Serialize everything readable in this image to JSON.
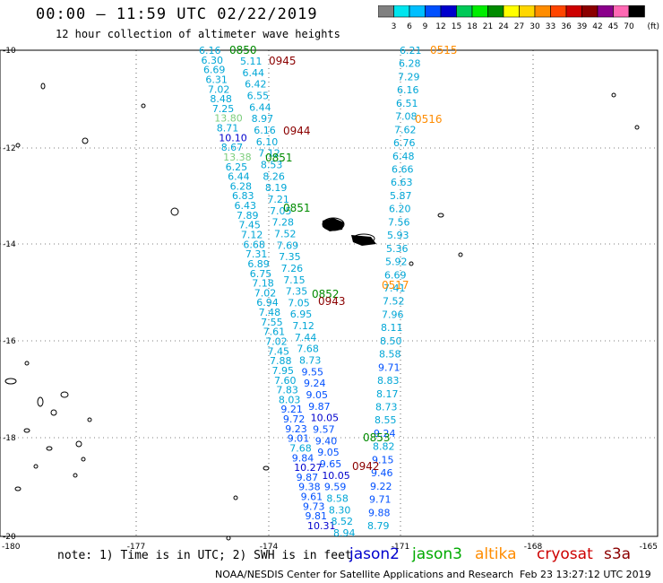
{
  "title": "00:00 – 11:59 UTC 02/22/2019",
  "subtitle": "12 hour collection of altimeter wave heights",
  "colorbar": {
    "labels": [
      "3",
      "6",
      "9",
      "12",
      "15",
      "18",
      "21",
      "24",
      "27",
      "30",
      "33",
      "36",
      "39",
      "42",
      "45",
      "70"
    ],
    "unit": "(ft)",
    "colors": [
      "#808080",
      "#00e5ee",
      "#00bfff",
      "#0050ff",
      "#0000cd",
      "#00c957",
      "#00ee00",
      "#008b00",
      "#ffff00",
      "#ffd700",
      "#ff8c00",
      "#ff4500",
      "#cd0000",
      "#8b0000",
      "#8b008b",
      "#ff69b4",
      "#000000"
    ]
  },
  "axes": {
    "x_ticks": [
      "-180",
      "-177",
      "-174",
      "-171",
      "-168",
      "-165"
    ],
    "y_ticks": [
      "-10",
      "-12",
      "-14",
      "-16",
      "-18",
      "-20"
    ]
  },
  "passes": [
    {
      "time": "0850",
      "color": "#008b00"
    },
    {
      "time": "0945",
      "color": "#8b0000"
    },
    {
      "time": "0944",
      "color": "#8b0000"
    },
    {
      "time": "0851",
      "color": "#008b00"
    },
    {
      "time": "0851",
      "color": "#008b00"
    },
    {
      "time": "0852",
      "color": "#008b00"
    },
    {
      "time": "0943",
      "color": "#8b0000"
    },
    {
      "time": "0853",
      "color": "#008b00"
    },
    {
      "time": "0942",
      "color": "#8b0000"
    },
    {
      "time": "0515",
      "color": "#ff8c00"
    },
    {
      "time": "0516",
      "color": "#ff8c00"
    },
    {
      "time": "0517",
      "color": "#ff8c00"
    }
  ],
  "west_track_values": [
    "6.16",
    "6.30",
    "6.69",
    "6.31",
    "7.02",
    "8.48",
    "7.25",
    "13.80",
    "8.71",
    "10.10",
    "8.67",
    "13.38",
    "6.25",
    "6.44",
    "6.28",
    "6.83",
    "6.43",
    "7.89",
    "7.45",
    "7.12",
    "6.68",
    "7.31",
    "6.89",
    "6.75",
    "7.18",
    "7.02",
    "6.94",
    "7.48",
    "7.55",
    "7.61",
    "7.02",
    "7.45",
    "7.88",
    "7.95",
    "7.60",
    "7.83",
    "8.03",
    "9.21",
    "9.72",
    "9.23",
    "9.01",
    "7.68",
    "9.84",
    "10.27",
    "9.87",
    "9.38",
    "9.61",
    "9.73",
    "9.81",
    "10.31"
  ],
  "mid_track_values": [
    "5.11",
    "6.44",
    "6.42",
    "6.55",
    "6.44",
    "8.97",
    "6.16",
    "6.10",
    "7.12",
    "8.53",
    "8.26",
    "8.19",
    "7.21",
    "7.05",
    "7.28",
    "7.52",
    "7.69",
    "7.35",
    "7.26",
    "7.15",
    "7.35",
    "7.05",
    "6.95",
    "7.12",
    "7.44",
    "7.68",
    "8.73",
    "9.55",
    "9.24",
    "9.05",
    "9.87",
    "10.05",
    "9.57",
    "9.40",
    "9.05",
    "9.65",
    "10.05",
    "9.59",
    "8.58",
    "8.30",
    "8.52",
    "8.94"
  ],
  "east_track_values": [
    "6.21",
    "6.28",
    "7.29",
    "6.16",
    "6.51",
    "7.08",
    "7.62",
    "6.76",
    "6.48",
    "6.66",
    "6.63",
    "5.87",
    "6.20",
    "7.56",
    "5.93",
    "5.36",
    "5.92",
    "6.69",
    "7.41",
    "7.52",
    "7.96",
    "8.11",
    "8.50",
    "8.58",
    "9.71",
    "8.83",
    "8.17",
    "8.73",
    "8.55",
    "9.24",
    "8.82",
    "9.15",
    "9.46",
    "9.22",
    "9.71",
    "9.88",
    "8.79"
  ],
  "note": "note: 1) Time is in UTC; 2) SWH is in feet",
  "legend": [
    {
      "name": "jason2",
      "color": "#0000cd"
    },
    {
      "name": "jason3",
      "color": "#00aa00"
    },
    {
      "name": "altika",
      "color": "#ff8c00"
    },
    {
      "name": "cryosat",
      "color": "#cd0000"
    },
    {
      "name": "s3a",
      "color": "#8b0000"
    }
  ],
  "footer": "NOAA/NESDIS Center for Satellite Applications and Research",
  "footer_date": "Feb 23 13:27:12 UTC 2019"
}
